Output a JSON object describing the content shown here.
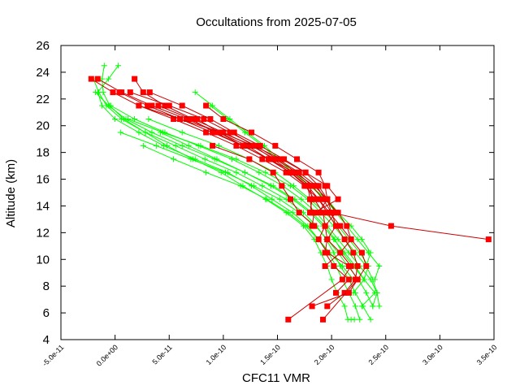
{
  "chart_data": {
    "type": "scatter",
    "title": "Occultations from 2025-07-05",
    "xlabel": "CFC11 VMR",
    "ylabel": "Altitude (km)",
    "xlim": [
      -5e-11,
      3.5e-10
    ],
    "ylim": [
      4,
      26
    ],
    "x_ticks": [
      "-5.0e-11",
      "0.0e+00",
      "5.0e-11",
      "1.0e-10",
      "1.5e-10",
      "2.0e-10",
      "2.5e-10",
      "3.0e-10",
      "3.5e-10"
    ],
    "y_ticks": [
      "4",
      "6",
      "8",
      "10",
      "12",
      "14",
      "16",
      "18",
      "20",
      "22",
      "24",
      "26"
    ],
    "grid": false,
    "legend": "none",
    "colors": {
      "series_a": "#00ff00",
      "series_b": "#ff0000",
      "line_b": "#cc0000",
      "axis": "#000000"
    },
    "series": [
      {
        "color": "#00ff00",
        "marker": "plus",
        "profiles": [
          {
            "x": [
              -1e-11,
              -1.2e-11,
              -1.1e-11,
              -5e-12,
              8e-12,
              2.8e-11,
              4.8e-11,
              7.2e-11,
              9.8e-11,
              1.18e-10,
              1.39e-10,
              1.58e-10,
              1.74e-10,
              1.84e-10,
              1.9e-10,
              1.96e-10,
              2e-10,
              2.05e-10,
              2.12e-10,
              2.15e-10,
              2.18e-10,
              2.21e-10
            ],
            "y": [
              24.5,
              23.5,
              22.5,
              21.5,
              20.5,
              19.5,
              18.5,
              17.5,
              16.5,
              15.5,
              14.5,
              13.5,
              12.5,
              11.5,
              10.5,
              9.5,
              8.5,
              7.5,
              6.5,
              5.5,
              5.5,
              5.5
            ]
          },
          {
            "x": [
              3e-12,
              -6e-12,
              -1.6e-11,
              -1.2e-11,
              0.0,
              2.2e-11,
              4.5e-11,
              7.4e-11,
              1.04e-10,
              1.26e-10,
              1.45e-10,
              1.64e-10,
              1.78e-10,
              1.88e-10,
              1.97e-10,
              2.04e-10,
              2.1e-10,
              2.16e-10,
              2.22e-10,
              2.26e-10
            ],
            "y": [
              24.5,
              23.5,
              22.5,
              21.5,
              20.5,
              19.5,
              18.5,
              17.5,
              16.5,
              15.5,
              14.5,
              13.5,
              12.5,
              11.5,
              10.5,
              9.5,
              8.5,
              7.5,
              6.5,
              5.5
            ]
          },
          {
            "x": [
              -2e-11,
              -1.5e-11,
              -8e-12,
              6e-12,
              2.8e-11,
              5.6e-11,
              8.3e-11,
              1.12e-10,
              1.36e-10,
              1.58e-10,
              1.74e-10,
              1.86e-10,
              1.95e-10,
              2.02e-10,
              2.08e-10,
              2.16e-10,
              2.22e-10,
              2.29e-10,
              2.36e-10
            ],
            "y": [
              23.5,
              22.5,
              21.5,
              20.5,
              19.5,
              18.5,
              17.5,
              16.5,
              15.5,
              14.5,
              13.5,
              12.5,
              11.5,
              10.5,
              9.5,
              8.5,
              7.5,
              6.5,
              5.5
            ]
          },
          {
            "x": [
              -1.8e-11,
              -6e-12,
              1e-11,
              3.4e-11,
              6.2e-11,
              9.2e-11,
              1.2e-10,
              1.46e-10,
              1.66e-10,
              1.82e-10,
              1.94e-10,
              2.03e-10,
              2.1e-10,
              2.2e-10,
              2.3e-10,
              2.4e-10,
              2.28e-10
            ],
            "y": [
              22.5,
              21.5,
              20.5,
              19.5,
              18.5,
              17.5,
              16.5,
              15.5,
              14.5,
              13.5,
              12.5,
              11.5,
              10.5,
              9.5,
              8.5,
              7.5,
              6.5
            ]
          },
          {
            "x": [
              -4e-12,
              1.8e-11,
              4.6e-11,
              7.7e-11,
              1.08e-10,
              1.33e-10,
              1.55e-10,
              1.72e-10,
              1.86e-10,
              1.96e-10,
              2.06e-10,
              2.16e-10,
              2.26e-10,
              2.36e-10,
              2.42e-10,
              2.38e-10
            ],
            "y": [
              21.5,
              20.5,
              19.5,
              18.5,
              17.5,
              16.5,
              15.5,
              14.5,
              13.5,
              12.5,
              11.5,
              10.5,
              9.5,
              8.5,
              7.5,
              6.5
            ]
          },
          {
            "x": [
              1.2e-11,
              4.4e-11,
              7.9e-11,
              1.12e-10,
              1.39e-10,
              1.62e-10,
              1.78e-10,
              1.9e-10,
              2.02e-10,
              2.12e-10,
              2.22e-10,
              2.32e-10,
              2.38e-10,
              2.42e-10,
              2.44e-10
            ],
            "y": [
              20.5,
              19.5,
              18.5,
              17.5,
              16.5,
              15.5,
              14.5,
              13.5,
              12.5,
              11.5,
              10.5,
              9.5,
              8.5,
              7.5,
              6.5
            ]
          },
          {
            "x": [
              3.1e-11,
              6.2e-11,
              9.6e-11,
              1.24e-10,
              1.48e-10,
              1.65e-10,
              1.8e-10,
              1.94e-10,
              2.06e-10,
              2.16e-10,
              2.26e-10,
              2.34e-10,
              2.3e-10,
              2.2e-10
            ],
            "y": [
              20.5,
              19.5,
              18.5,
              17.5,
              16.5,
              15.5,
              14.5,
              13.5,
              12.5,
              11.5,
              10.5,
              9.5,
              8.5,
              7.5
            ]
          },
          {
            "x": [
              7.4e-11,
              9e-11,
              1.06e-10,
              1.22e-10,
              1.38e-10,
              1.52e-10,
              1.66e-10,
              1.8e-10,
              1.94e-10,
              2.04e-10,
              2.14e-10,
              2.24e-10,
              2.34e-10,
              2.44e-10,
              2.4e-10
            ],
            "y": [
              22.5,
              21.5,
              20.5,
              19.5,
              18.5,
              17.5,
              16.5,
              15.5,
              14.5,
              13.5,
              12.5,
              11.5,
              10.5,
              9.5,
              8.5
            ]
          },
          {
            "x": [
              8.8e-11,
              1.04e-10,
              1.2e-10,
              1.36e-10,
              1.5e-10,
              1.64e-10,
              1.8e-10,
              1.96e-10,
              2.06e-10,
              2.18e-10,
              2.28e-10,
              2.36e-10,
              2.32e-10
            ],
            "y": [
              21.5,
              20.5,
              19.5,
              18.5,
              17.5,
              16.5,
              15.5,
              14.5,
              13.5,
              12.5,
              11.5,
              10.5,
              9.5
            ]
          },
          {
            "x": [
              5e-12,
              3.8e-11,
              7e-11,
              1.02e-10,
              1.28e-10,
              1.52e-10,
              1.7e-10,
              1.85e-10,
              1.96e-10,
              2.06e-10,
              2.15e-10,
              2.25e-10,
              2.32e-10,
              2.38e-10
            ],
            "y": [
              19.5,
              18.5,
              17.5,
              16.5,
              15.5,
              14.5,
              13.5,
              12.5,
              11.5,
              10.5,
              9.5,
              8.5,
              7.5,
              6.5
            ]
          },
          {
            "x": [
              4.2e-11,
              6.8e-11,
              9.4e-11,
              1.2e-10,
              1.44e-10,
              1.64e-10,
              1.8e-10,
              1.92e-10,
              2.02e-10,
              2.12e-10,
              2.22e-10,
              2.3e-10
            ],
            "y": [
              19.5,
              18.5,
              17.5,
              16.5,
              15.5,
              14.5,
              13.5,
              12.5,
              11.5,
              10.5,
              9.5,
              8.5
            ]
          },
          {
            "x": [
              2.6e-11,
              5.4e-11,
              8.4e-11,
              1.16e-10,
              1.4e-10,
              1.6e-10,
              1.76e-10,
              1.88e-10,
              1.98e-10,
              2.1e-10,
              2.2e-10
            ],
            "y": [
              18.5,
              17.5,
              16.5,
              15.5,
              14.5,
              13.5,
              12.5,
              11.5,
              10.5,
              9.5,
              8.5
            ]
          }
        ]
      },
      {
        "color": "#ff0000",
        "marker": "square",
        "profiles": [
          {
            "x": [
              -2.2e-11,
              -2e-12,
              2.2e-11,
              5.4e-11,
              8.4e-11,
              1.12e-10,
              1.36e-10,
              1.58e-10,
              1.75e-10,
              1.88e-10,
              1.96e-10,
              2.04e-10,
              2.12e-10,
              2.2e-10,
              2.24e-10,
              2.22e-10,
              2.12e-10,
              1.96e-10
            ],
            "y": [
              23.5,
              22.5,
              21.5,
              20.5,
              19.5,
              18.5,
              17.5,
              16.5,
              15.5,
              14.5,
              13.5,
              12.5,
              11.5,
              10.5,
              9.5,
              8.5,
              7.5,
              6.5
            ]
          },
          {
            "x": [
              -1.6e-11,
              6e-12,
              3.4e-11,
              6.6e-11,
              9.6e-11,
              1.22e-10,
              1.42e-10,
              1.62e-10,
              1.78e-10,
              1.88e-10,
              1.98e-10,
              2.08e-10,
              2.18e-10,
              2.28e-10,
              2.32e-10,
              2.24e-10,
              1.92e-10
            ],
            "y": [
              23.5,
              22.5,
              21.5,
              20.5,
              19.5,
              18.5,
              17.5,
              16.5,
              15.5,
              14.5,
              13.5,
              12.5,
              11.5,
              10.5,
              9.5,
              8.5,
              5.5
            ]
          },
          {
            "x": [
              1.8e-11,
              2.6e-11,
              4.6e-11,
              7.2e-11,
              1e-10,
              1.26e-10,
              1.48e-10,
              1.68e-10,
              1.82e-10,
              1.92e-10,
              2e-10,
              2.55e-10,
              3.45e-10
            ],
            "y": [
              23.5,
              22.5,
              21.5,
              20.5,
              19.5,
              18.5,
              17.5,
              16.5,
              15.5,
              14.5,
              13.5,
              12.5,
              11.5
            ]
          },
          {
            "x": [
              4e-12,
              3e-11,
              6e-11,
              9e-11,
              1.18e-10,
              1.42e-10,
              1.66e-10,
              1.84e-10,
              1.96e-10,
              2.04e-10,
              1.94e-10,
              1.88e-10,
              1.96e-10,
              2.16e-10,
              2.24e-10,
              2.16e-10,
              1.82e-10
            ],
            "y": [
              22.5,
              21.5,
              20.5,
              19.5,
              18.5,
              17.5,
              16.5,
              15.5,
              14.5,
              13.5,
              12.5,
              11.5,
              10.5,
              9.5,
              8.5,
              7.5,
              6.5
            ]
          },
          {
            "x": [
              1.4e-11,
              5e-11,
              8.2e-11,
              1.06e-10,
              1.3e-10,
              1.5e-10,
              1.7e-10,
              1.86e-10,
              1.94e-10,
              2.06e-10,
              2.14e-10,
              2.18e-10,
              2.08e-10,
              1.94e-10
            ],
            "y": [
              22.5,
              21.5,
              20.5,
              19.5,
              18.5,
              17.5,
              16.5,
              15.5,
              14.5,
              13.5,
              12.5,
              11.5,
              10.5,
              9.5
            ]
          },
          {
            "x": [
              3.2e-11,
              6.2e-11,
              8.8e-11,
              1.1e-10,
              1.34e-10,
              1.56e-10,
              1.76e-10,
              1.88e-10,
              1.96e-10,
              2e-10,
              2.04e-10,
              1.96e-10,
              2.08e-10,
              2.18e-10,
              2.1e-10,
              1.6e-10
            ],
            "y": [
              22.5,
              21.5,
              20.5,
              19.5,
              18.5,
              17.5,
              16.5,
              15.5,
              14.5,
              13.5,
              12.5,
              11.5,
              10.5,
              9.5,
              8.5,
              5.5
            ]
          },
          {
            "x": [
              4e-11,
              7e-11,
              9.2e-11,
              1.18e-10,
              1.42e-10,
              1.62e-10,
              1.76e-10,
              1.84e-10,
              1.92e-10,
              1.94e-10,
              1.96e-10,
              1.94e-10,
              2.02e-10,
              2.16e-10,
              2.04e-10
            ],
            "y": [
              21.5,
              20.5,
              19.5,
              18.5,
              17.5,
              16.5,
              15.5,
              14.5,
              13.5,
              12.5,
              11.5,
              10.5,
              9.5,
              8.5,
              7.5
            ]
          },
          {
            "x": [
              2.2e-11,
              6e-11,
              9.8e-11,
              1.28e-10,
              1.54e-10,
              1.76e-10,
              1.96e-10,
              2.06e-10,
              1.84e-10,
              1.82e-10
            ],
            "y": [
              21.5,
              20.5,
              19.5,
              18.5,
              17.5,
              16.5,
              15.5,
              14.5,
              13.5,
              12.5
            ]
          },
          {
            "x": [
              8.4e-11,
              1e-10,
              1.26e-10,
              1.48e-10,
              1.68e-10,
              1.88e-10,
              1.94e-10,
              1.96e-10,
              1.88e-10
            ],
            "y": [
              21.5,
              20.5,
              19.5,
              18.5,
              17.5,
              16.5,
              15.5,
              14.5,
              13.5
            ]
          },
          {
            "x": [
              1.08e-10,
              1.28e-10,
              1.46e-10,
              1.64e-10,
              1.8e-10,
              1.82e-10,
              1.8e-10
            ],
            "y": [
              19.5,
              18.5,
              17.5,
              16.5,
              15.5,
              14.5,
              13.5
            ]
          },
          {
            "x": [
              7.6e-11,
              9.6e-11,
              1.18e-10,
              1.42e-10,
              1.62e-10,
              1.78e-10,
              1.8e-10,
              1.82e-10
            ],
            "y": [
              20.5,
              19.5,
              18.5,
              17.5,
              16.5,
              15.5,
              14.5,
              13.5
            ]
          },
          {
            "x": [
              9e-11,
              1.24e-10,
              1.46e-10,
              1.54e-10,
              1.62e-10,
              1.7e-10,
              1.84e-10
            ],
            "y": [
              18.5,
              17.5,
              16.5,
              15.5,
              14.5,
              13.5,
              12.5
            ]
          }
        ]
      }
    ]
  }
}
